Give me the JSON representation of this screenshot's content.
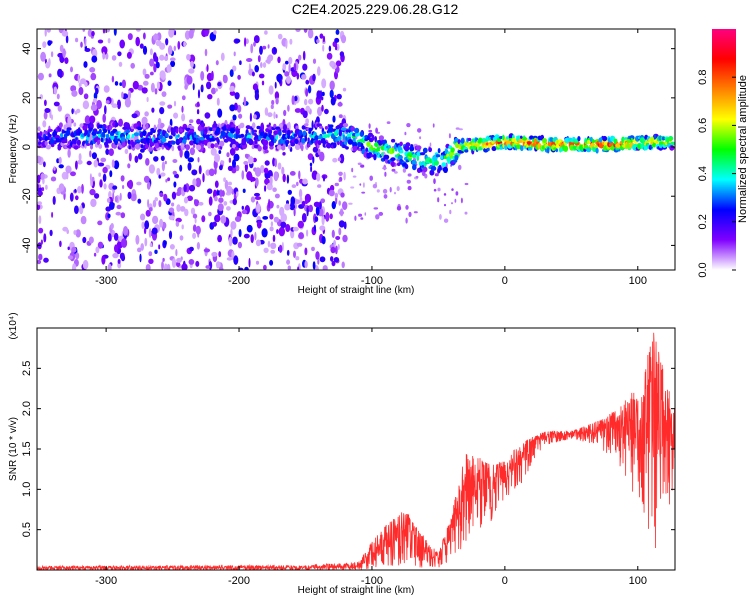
{
  "title": "C2E4.2025.229.06.28.G12",
  "chart_data": [
    {
      "type": "heatmap",
      "name": "spectrogram",
      "xlabel": "Height of straight line (km)",
      "ylabel": "Frequency (Hz)",
      "xlim": [
        -352,
        128
      ],
      "ylim": [
        -50,
        48
      ],
      "xticks": [
        -300,
        -200,
        -100,
        0,
        100
      ],
      "yticks": [
        -40,
        -20,
        0,
        20,
        40
      ],
      "colorbar": {
        "label": "Normalized spectral amplitude",
        "range": [
          0.0,
          1.0
        ],
        "ticks": [
          "0.0",
          "0.2",
          "0.4",
          "0.6",
          "0.8"
        ],
        "tick_values": [
          0.0,
          0.2,
          0.4,
          0.6,
          0.8
        ],
        "colors": [
          "#ffffff",
          "#8000ff",
          "#0000ff",
          "#00ffff",
          "#00ff00",
          "#ffff00",
          "#ff8000",
          "#ff0000",
          "#ff0080"
        ]
      },
      "ridge_center_hz": [
        {
          "x": -340,
          "y": 4
        },
        {
          "x": -300,
          "y": 5
        },
        {
          "x": -280,
          "y": 4
        },
        {
          "x": -250,
          "y": 4
        },
        {
          "x": -220,
          "y": 5
        },
        {
          "x": -200,
          "y": 4
        },
        {
          "x": -170,
          "y": 4
        },
        {
          "x": -125,
          "y": 5
        },
        {
          "x": -110,
          "y": 3
        },
        {
          "x": -100,
          "y": 0
        },
        {
          "x": -85,
          "y": -2
        },
        {
          "x": -70,
          "y": -4
        },
        {
          "x": -55,
          "y": -6
        },
        {
          "x": -45,
          "y": -5
        },
        {
          "x": -35,
          "y": 0
        },
        {
          "x": -20,
          "y": 1
        },
        {
          "x": 0,
          "y": 2
        },
        {
          "x": 40,
          "y": 1
        },
        {
          "x": 80,
          "y": 1
        },
        {
          "x": 110,
          "y": 2
        },
        {
          "x": 128,
          "y": 2
        }
      ],
      "ridge_amplitude": [
        {
          "x": -340,
          "v": 0.25
        },
        {
          "x": -300,
          "v": 0.35
        },
        {
          "x": -250,
          "v": 0.3
        },
        {
          "x": -200,
          "v": 0.3
        },
        {
          "x": -150,
          "v": 0.3
        },
        {
          "x": -125,
          "v": 0.4
        },
        {
          "x": -100,
          "v": 0.5
        },
        {
          "x": -70,
          "v": 0.5
        },
        {
          "x": -45,
          "v": 0.45
        },
        {
          "x": -35,
          "v": 0.7
        },
        {
          "x": 0,
          "v": 0.85
        },
        {
          "x": 50,
          "v": 0.85
        },
        {
          "x": 100,
          "v": 0.8
        },
        {
          "x": 128,
          "v": 0.6
        }
      ],
      "noise_region_x": [
        -352,
        -128
      ]
    },
    {
      "type": "line",
      "name": "snr",
      "xlabel": "Height of straight line (km)",
      "ylabel": "SNR (10 * v/v)",
      "y_multiplier": "(x10⁴)",
      "xlim": [
        -352,
        128
      ],
      "ylim": [
        0,
        3.0
      ],
      "xticks": [
        -300,
        -200,
        -100,
        0,
        100
      ],
      "yticks": [
        0.5,
        1.0,
        1.5,
        2.0,
        2.5
      ],
      "ytick_labels": [
        "0.5",
        "1.0",
        "1.5",
        "2.0",
        "2.5"
      ],
      "color": "#ff2a2a",
      "envelope": [
        {
          "x": -352,
          "lo": 0.0,
          "hi": 0.05
        },
        {
          "x": -150,
          "lo": 0.0,
          "hi": 0.06
        },
        {
          "x": -110,
          "lo": 0.0,
          "hi": 0.1
        },
        {
          "x": -100,
          "lo": 0.02,
          "hi": 0.35
        },
        {
          "x": -90,
          "lo": 0.05,
          "hi": 0.55
        },
        {
          "x": -75,
          "lo": 0.05,
          "hi": 0.75
        },
        {
          "x": -65,
          "lo": 0.03,
          "hi": 0.5
        },
        {
          "x": -50,
          "lo": 0.03,
          "hi": 0.2
        },
        {
          "x": -40,
          "lo": 0.1,
          "hi": 0.7
        },
        {
          "x": -30,
          "lo": 0.3,
          "hi": 1.45
        },
        {
          "x": -20,
          "lo": 0.5,
          "hi": 1.4
        },
        {
          "x": -10,
          "lo": 0.6,
          "hi": 1.3
        },
        {
          "x": 0,
          "lo": 0.9,
          "hi": 1.35
        },
        {
          "x": 10,
          "lo": 1.0,
          "hi": 1.55
        },
        {
          "x": 20,
          "lo": 1.3,
          "hi": 1.65
        },
        {
          "x": 30,
          "lo": 1.55,
          "hi": 1.72
        },
        {
          "x": 50,
          "lo": 1.62,
          "hi": 1.72
        },
        {
          "x": 70,
          "lo": 1.55,
          "hi": 1.85
        },
        {
          "x": 85,
          "lo": 1.3,
          "hi": 2.0
        },
        {
          "x": 95,
          "lo": 1.0,
          "hi": 2.2
        },
        {
          "x": 105,
          "lo": 0.7,
          "hi": 2.5
        },
        {
          "x": 112,
          "lo": 0.15,
          "hi": 2.95
        },
        {
          "x": 118,
          "lo": 0.4,
          "hi": 2.6
        },
        {
          "x": 128,
          "lo": 1.1,
          "hi": 2.0
        }
      ]
    }
  ]
}
